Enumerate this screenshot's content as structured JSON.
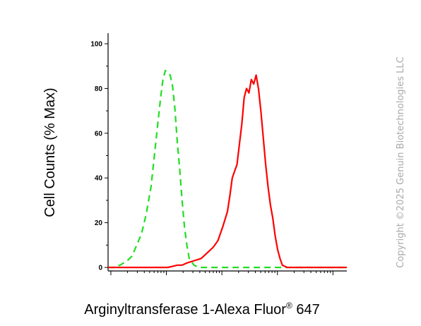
{
  "chart_data": {
    "type": "line",
    "title": "",
    "xlabel_main": "Arginyltransferase 1-Alexa Fluor",
    "xlabel_sup": "®",
    "xlabel_tail": " 647",
    "ylabel": "Cell Counts (% Max)",
    "ylim": [
      0,
      100
    ],
    "y_ticks": [
      "0",
      "20",
      "40",
      "60",
      "80",
      "100"
    ],
    "x_scale": "log",
    "grid": false,
    "legend": "none",
    "series": [
      {
        "color": "#22dd22",
        "style": "dashed",
        "x": [
          0.0,
          0.02,
          0.05,
          0.08,
          0.1,
          0.12,
          0.14,
          0.16,
          0.18,
          0.19,
          0.2,
          0.21,
          0.22,
          0.23,
          0.24,
          0.25,
          0.26,
          0.27,
          0.28,
          0.29,
          0.3,
          0.31,
          0.32,
          0.33,
          0.34,
          0.36,
          0.38,
          0.4,
          0.45,
          0.5,
          0.6,
          0.7,
          0.8,
          0.9,
          1.0
        ],
        "y": [
          0,
          0,
          1,
          3,
          5,
          10,
          15,
          24,
          36,
          46,
          56,
          66,
          76,
          84,
          88,
          87,
          86,
          81,
          71,
          56,
          44,
          30,
          18,
          10,
          4,
          1,
          0,
          0,
          0,
          0,
          0,
          0,
          0,
          0,
          0
        ]
      },
      {
        "color": "#ff0000",
        "style": "solid",
        "x": [
          0.0,
          0.2,
          0.25,
          0.27,
          0.29,
          0.31,
          0.33,
          0.36,
          0.39,
          0.42,
          0.44,
          0.46,
          0.48,
          0.5,
          0.51,
          0.52,
          0.53,
          0.54,
          0.55,
          0.56,
          0.57,
          0.58,
          0.59,
          0.6,
          0.61,
          0.62,
          0.63,
          0.64,
          0.65,
          0.66,
          0.67,
          0.68,
          0.69,
          0.7,
          0.71,
          0.72,
          0.73,
          0.75,
          0.77,
          0.8,
          0.85,
          0.9,
          1.0
        ],
        "y": [
          0,
          0,
          0,
          0.5,
          1,
          1,
          2,
          3,
          4,
          7,
          9,
          12,
          18,
          25,
          32,
          40,
          43,
          46,
          55,
          64,
          76,
          80,
          78,
          84,
          82,
          86,
          80,
          70,
          58,
          46,
          36,
          28,
          22,
          14,
          8,
          4,
          1,
          0,
          0,
          0,
          0,
          0,
          0
        ]
      }
    ]
  },
  "copyright": "Copyright ©2025 Genuin Biotechnologies LLC"
}
